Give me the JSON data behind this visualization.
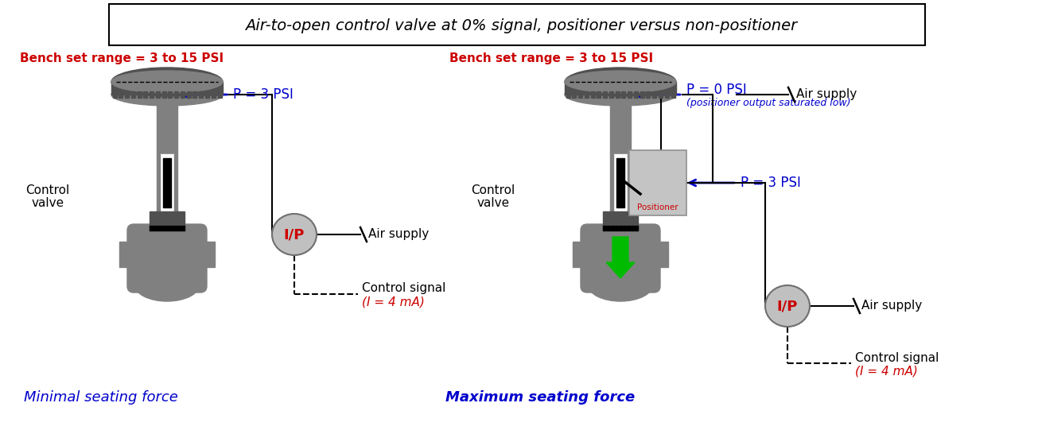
{
  "title": "Air-to-open control valve at 0% signal, positioner versus non-positioner",
  "bg_color": "#ffffff",
  "valve_color": "#808080",
  "valve_dark": "#505050",
  "valve_mid": "#686868",
  "blue": "#0000cc",
  "red": "#cc0000",
  "green": "#00bb00",
  "black": "#000000",
  "left_bench": "Bench set range = 3 to 15 PSI",
  "right_bench": "Bench set range = 3 to 15 PSI",
  "left_p": "P = 3 PSI",
  "right_p1": "P = 0 PSI",
  "right_p1_sub": "(positioner output saturated low)",
  "right_p2": "P = 3 PSI",
  "air_supply": "Air supply",
  "control_signal": "Control signal",
  "i4ma": "(I = 4 mA)",
  "positioner_label": "Positioner",
  "left_caption": "Minimal seating force",
  "right_caption": "Maximum seating force",
  "ip_label": "I/P",
  "ctrl_valve_1": "Control",
  "ctrl_valve_2": "valve"
}
